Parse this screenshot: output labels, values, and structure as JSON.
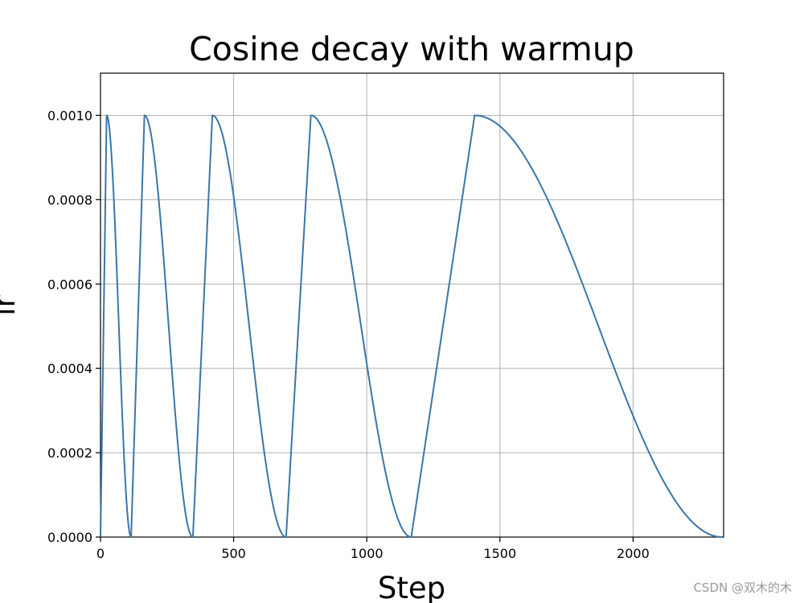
{
  "chart_data": {
    "type": "line",
    "title": "Cosine decay with warmup",
    "xlabel": "Step",
    "ylabel": "lr",
    "xlim": [
      0,
      2340
    ],
    "ylim": [
      0,
      0.0011
    ],
    "grid": true,
    "x_ticks": [
      0,
      500,
      1000,
      1500,
      2000
    ],
    "x_tick_labels": [
      "0",
      "500",
      "1000",
      "1500",
      "2000"
    ],
    "y_ticks": [
      0,
      0.0002,
      0.0004,
      0.0006,
      0.0008,
      0.001
    ],
    "y_tick_labels": [
      "0.0000",
      "0.0002",
      "0.0004",
      "0.0006",
      "0.0008",
      "0.0010"
    ],
    "line_color": "#3a76a8",
    "grid_color": "#b0b0b0",
    "series": [
      {
        "name": "",
        "peak_lr": 0.001,
        "cycles": [
          {
            "start": 0,
            "peak": 23,
            "end": 115
          },
          {
            "start": 115,
            "peak": 165,
            "end": 347
          },
          {
            "start": 347,
            "peak": 420,
            "end": 697
          },
          {
            "start": 697,
            "peak": 790,
            "end": 1167
          },
          {
            "start": 1167,
            "peak": 1405,
            "end": 2335
          }
        ]
      }
    ]
  },
  "watermark": "CSDN @双木的木"
}
